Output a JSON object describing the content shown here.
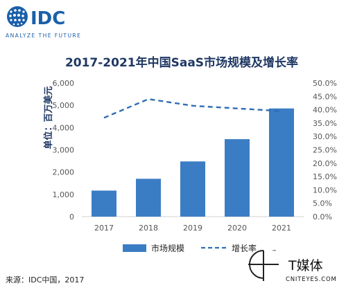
{
  "logo": {
    "brand": "IDC",
    "tagline": "ANALYZE THE FUTURE"
  },
  "chart_data": {
    "type": "bar",
    "title": "2017-2021年中国SaaS市场规模及增长率",
    "ylabel": "单位：百万美元",
    "categories": [
      "2017",
      "2018",
      "2019",
      "2020",
      "2021"
    ],
    "series": [
      {
        "name": "市场规模",
        "type": "bar",
        "axis": "left",
        "color": "#3B7DC4",
        "values": [
          1170,
          1700,
          2480,
          3480,
          4860
        ]
      },
      {
        "name": "增长率",
        "type": "line",
        "style": "dashed",
        "axis": "right",
        "color": "#2E6DB4",
        "values": [
          37.0,
          44.0,
          41.5,
          40.5,
          39.5
        ]
      }
    ],
    "left_axis": {
      "min": 0,
      "max": 6000,
      "ticks": [
        "0",
        "1,000",
        "2,000",
        "3,000",
        "4,000",
        "5,000",
        "6,000"
      ]
    },
    "right_axis": {
      "min": 0,
      "max": 50,
      "ticks": [
        "0.0%",
        "5.0%",
        "10.0%",
        "15.0%",
        "20.0%",
        "25.0%",
        "30.0%",
        "35.0%",
        "40.0%",
        "45.0%",
        "50.0%"
      ]
    },
    "legend": {
      "placement": "bottom"
    },
    "grid": false
  },
  "source": "来源：IDC中国，2017",
  "watermark": {
    "brand": "T媒体",
    "site": "CNITEYES.COM",
    "tm": "™"
  },
  "colors": {
    "bar": "#3B7DC4",
    "line": "#2E6DB4",
    "logo_blue": "#1B5FAA",
    "axis_text": "#555555",
    "title": "#1F3864"
  }
}
